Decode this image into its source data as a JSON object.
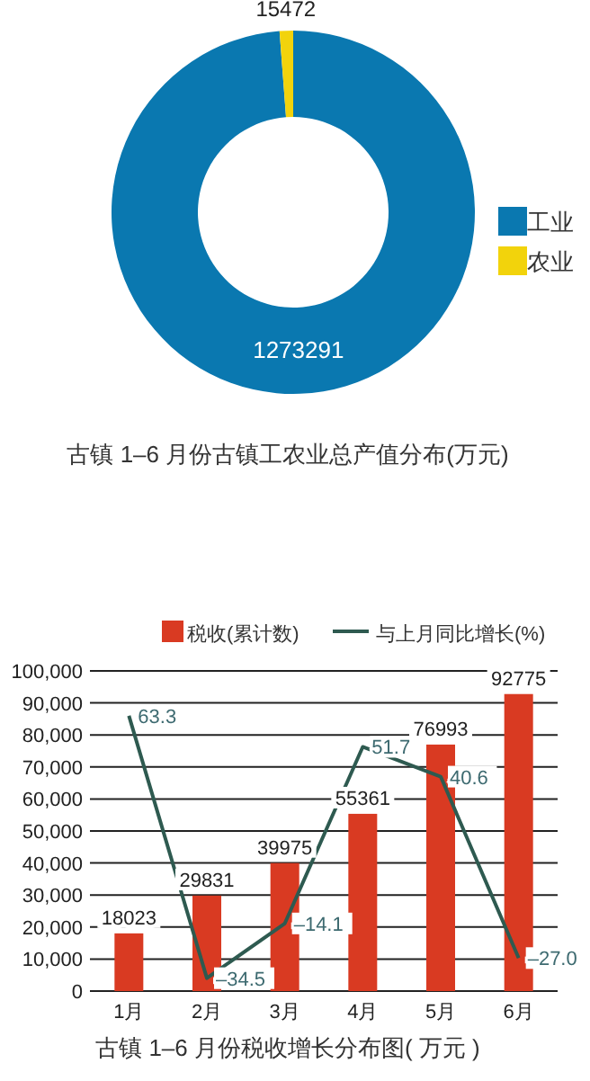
{
  "chart_data": [
    {
      "type": "donut",
      "title": "古镇 1–6 月份古镇工农业总产值分布(万元)",
      "categories": [
        "工业",
        "农业"
      ],
      "values": [
        1273291,
        15472
      ],
      "colors": [
        "#0a78b0",
        "#f2d30c"
      ],
      "data_labels": true,
      "legend": "right"
    },
    {
      "type": "bar",
      "title": "古镇 1–6 月份税收增长分布图( 万元 )",
      "categories": [
        "1月",
        "2月",
        "3月",
        "4月",
        "5月",
        "6月"
      ],
      "series": [
        {
          "name": "税收(累计数)",
          "color": "#d93a22",
          "values": [
            18023,
            29831,
            39975,
            55361,
            76993,
            92775
          ]
        },
        {
          "name": "与上月同比增长(%)",
          "type": "line",
          "axis": "y2",
          "color": "#2e5a50",
          "values": [
            63.3,
            -34.5,
            -14.1,
            51.7,
            40.6,
            -27.0
          ],
          "value_labels": [
            "63.3",
            "–34.5",
            "–14.1",
            "51.7",
            "40.6",
            "–27.0"
          ]
        }
      ],
      "ylim": [
        0,
        100000
      ],
      "yticks": [
        {
          "value": 0,
          "label": "0"
        },
        {
          "value": 10000,
          "label": "10,000"
        },
        {
          "value": 20000,
          "label": "20,000"
        },
        {
          "value": 30000,
          "label": "30,000"
        },
        {
          "value": 40000,
          "label": "40,000"
        },
        {
          "value": 50000,
          "label": "50,000"
        },
        {
          "value": 60000,
          "label": "60,000"
        },
        {
          "value": 70000,
          "label": "70,000"
        },
        {
          "value": 80000,
          "label": "80,000"
        },
        {
          "value": 90000,
          "label": "90,000"
        },
        {
          "value": 100000,
          "label": "100,000"
        }
      ],
      "y2lim": [
        -39.3,
        80
      ],
      "data_labels": true,
      "grid": "y",
      "legend": "top"
    }
  ]
}
